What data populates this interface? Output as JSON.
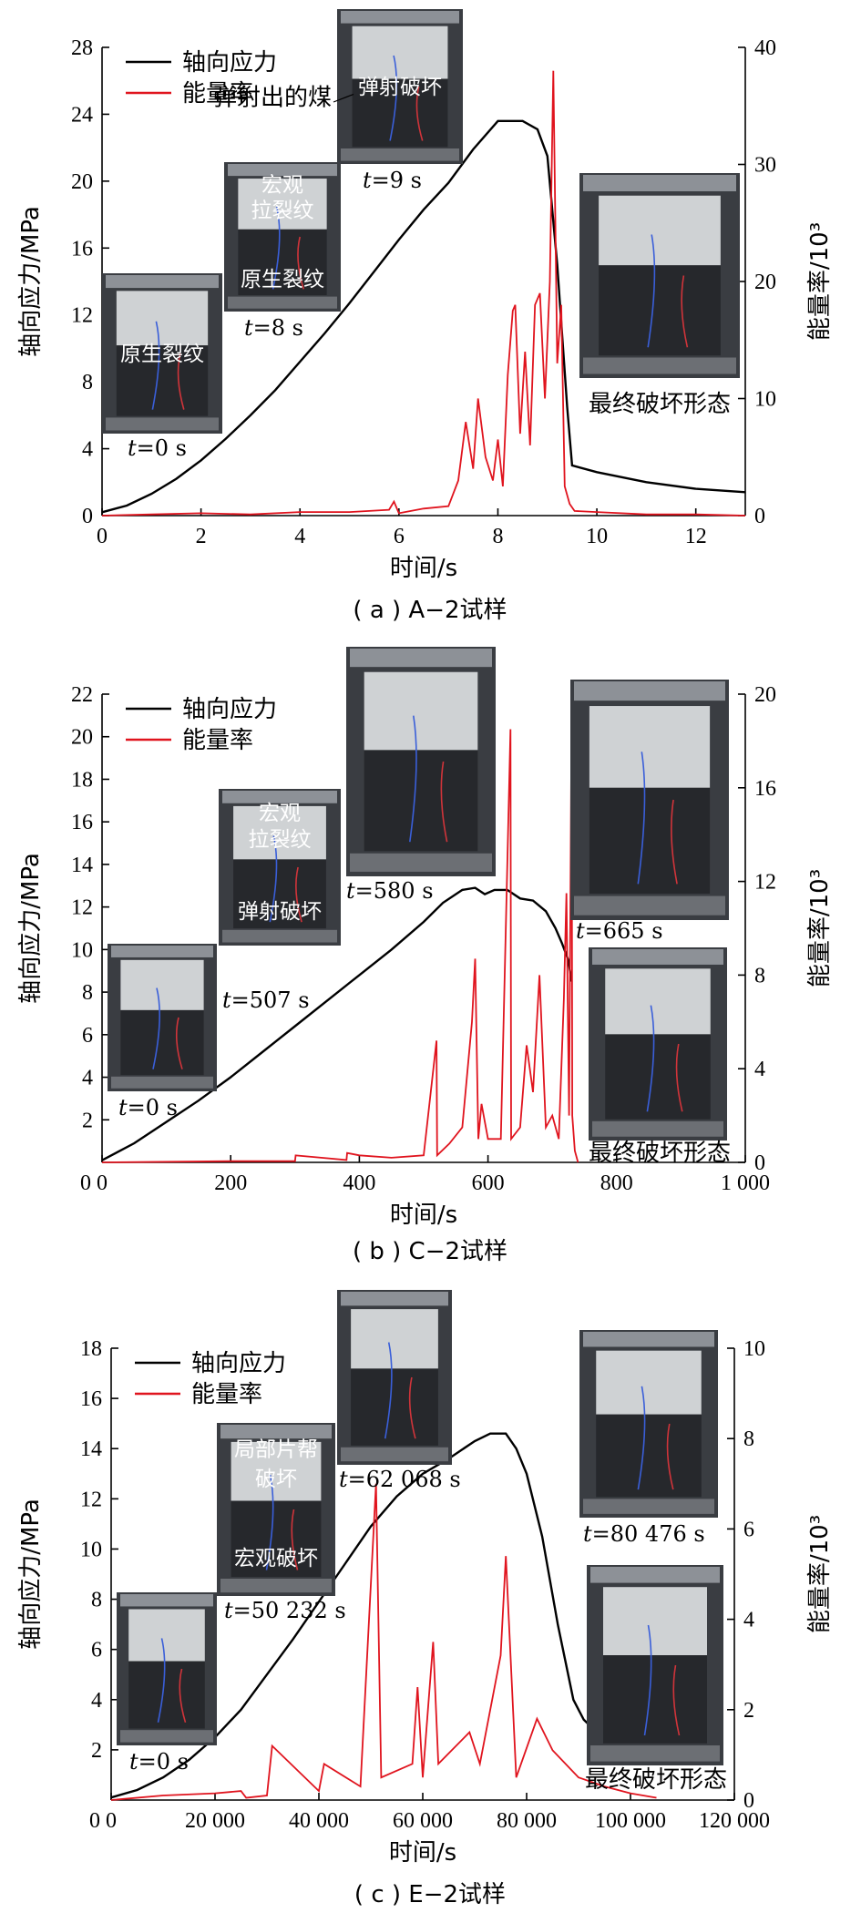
{
  "legend": {
    "stress": "轴向应力",
    "energy": "能量率"
  },
  "chart_data": [
    {
      "type": "line",
      "caption": "( a ) A−2试样",
      "xlabel": "时间/s",
      "ylabel": "轴向应力/MPa",
      "y2label": "能量率/10³",
      "xlim": [
        0,
        13
      ],
      "ylim": [
        0,
        28
      ],
      "y2lim": [
        0,
        40
      ],
      "xticks": [
        0,
        2,
        4,
        6,
        8,
        10,
        12
      ],
      "xtick_labels": [
        "0",
        "2",
        "4",
        "6",
        "8",
        "10",
        "12"
      ],
      "yticks": [
        0,
        4,
        8,
        12,
        16,
        20,
        24,
        28
      ],
      "y2ticks": [
        0,
        10,
        20,
        30,
        40
      ],
      "series": [
        {
          "name": "轴向应力",
          "axis": "left",
          "x": [
            0,
            0.5,
            1,
            1.5,
            2,
            2.5,
            3,
            3.5,
            4,
            4.5,
            5,
            5.5,
            6,
            6.5,
            7,
            7.5,
            8,
            8.5,
            8.8,
            9.0,
            9.2,
            9.4,
            9.5,
            10,
            11,
            12,
            13
          ],
          "y": [
            0.2,
            0.6,
            1.3,
            2.2,
            3.3,
            4.6,
            6.0,
            7.5,
            9.2,
            10.9,
            12.7,
            14.6,
            16.5,
            18.3,
            19.9,
            21.9,
            23.6,
            23.6,
            23.1,
            21.5,
            15.0,
            6.5,
            3.0,
            2.6,
            2.0,
            1.6,
            1.4
          ]
        },
        {
          "name": "能量率",
          "axis": "right",
          "x": [
            0,
            1,
            2,
            3,
            4,
            5,
            5.8,
            5.9,
            6.0,
            6.5,
            7.0,
            7.2,
            7.35,
            7.5,
            7.6,
            7.75,
            7.9,
            8.0,
            8.1,
            8.2,
            8.3,
            8.35,
            8.45,
            8.55,
            8.65,
            8.75,
            8.85,
            8.95,
            9.05,
            9.12,
            9.2,
            9.28,
            9.35,
            9.45,
            9.55,
            10,
            11,
            12,
            13
          ],
          "y": [
            0,
            0.1,
            0.2,
            0.1,
            0.3,
            0.3,
            0.5,
            1.2,
            0.2,
            0.6,
            0.8,
            3.0,
            8.0,
            4.0,
            10.0,
            5.0,
            3.0,
            6.5,
            2.5,
            12.0,
            17.5,
            18.0,
            7.0,
            14.0,
            6.0,
            18.0,
            19.0,
            10.0,
            20.0,
            38.0,
            13.0,
            18.0,
            2.5,
            1.0,
            0.4,
            0.3,
            0.1,
            0.1,
            0
          ]
        }
      ]
    },
    {
      "type": "line",
      "caption": "( b ) C−2试样",
      "xlabel": "时间/s",
      "ylabel": "轴向应力/MPa",
      "y2label": "能量率/10³",
      "xlim": [
        0,
        1000
      ],
      "ylim": [
        0,
        22
      ],
      "y2lim": [
        0,
        20
      ],
      "xticks": [
        0,
        200,
        400,
        600,
        800,
        1000
      ],
      "xtick_labels": [
        "0",
        "200",
        "400",
        "600",
        "800",
        "1 000"
      ],
      "yticks": [
        2,
        4,
        6,
        8,
        10,
        12,
        14,
        16,
        18,
        20,
        22
      ],
      "y2ticks": [
        0,
        4,
        8,
        12,
        16,
        20
      ],
      "series": [
        {
          "name": "轴向应力",
          "axis": "left",
          "x": [
            0,
            50,
            100,
            150,
            200,
            250,
            300,
            350,
            400,
            450,
            500,
            530,
            560,
            580,
            595,
            610,
            630,
            650,
            670,
            690,
            705,
            715,
            725,
            730
          ],
          "y": [
            0.1,
            0.9,
            1.9,
            2.9,
            4.0,
            5.2,
            6.4,
            7.6,
            8.8,
            10.0,
            11.3,
            12.2,
            12.8,
            12.9,
            12.6,
            12.8,
            12.8,
            12.4,
            12.3,
            11.8,
            11.0,
            10.3,
            9.5,
            8.5
          ]
        },
        {
          "name": "能量率",
          "axis": "right",
          "x": [
            0,
            200,
            300,
            301,
            380,
            381,
            400,
            450,
            500,
            520,
            521,
            540,
            560,
            575,
            580,
            585,
            590,
            600,
            620,
            635,
            636,
            650,
            660,
            670,
            680,
            690,
            700,
            710,
            718,
            722,
            726,
            730,
            731,
            735,
            740
          ],
          "y": [
            0,
            0.05,
            0.05,
            0.3,
            0.1,
            0.4,
            0.3,
            0.2,
            0.3,
            5.2,
            0.3,
            0.8,
            1.5,
            6.0,
            8.7,
            1.0,
            2.5,
            1.0,
            1.0,
            18.5,
            1.0,
            1.5,
            5.0,
            3.0,
            8.0,
            1.5,
            2.0,
            1.0,
            7.0,
            11.5,
            2.0,
            19.5,
            2.0,
            0.5,
            0
          ]
        }
      ]
    },
    {
      "type": "line",
      "caption": "( c ) E−2试样",
      "xlabel": "时间/s",
      "ylabel": "轴向应力/MPa",
      "y2label": "能量率/10³",
      "xlim": [
        0,
        120000
      ],
      "ylim": [
        0,
        18
      ],
      "y2lim": [
        0,
        10
      ],
      "xticks": [
        0,
        20000,
        40000,
        60000,
        80000,
        100000,
        120000
      ],
      "xtick_labels": [
        "0",
        "20 000",
        "40 000",
        "60 000",
        "80 000",
        "100 000",
        "120 000"
      ],
      "yticks": [
        2,
        4,
        6,
        8,
        10,
        12,
        14,
        16,
        18
      ],
      "y2ticks": [
        0,
        2,
        4,
        6,
        8,
        10
      ],
      "series": [
        {
          "name": "轴向应力",
          "axis": "left",
          "x": [
            0,
            5000,
            10000,
            15000,
            20000,
            25000,
            30000,
            35000,
            40000,
            45000,
            50000,
            55000,
            60000,
            65000,
            70000,
            73000,
            76000,
            78000,
            80000,
            83000,
            86000,
            89000,
            91000,
            92000,
            94000
          ],
          "y": [
            0.1,
            0.4,
            0.9,
            1.6,
            2.5,
            3.6,
            5.0,
            6.4,
            7.9,
            9.4,
            10.9,
            12.1,
            13.0,
            13.6,
            14.3,
            14.6,
            14.6,
            14.0,
            13.0,
            10.5,
            7.0,
            4.0,
            3.2,
            3.0,
            2.9
          ]
        },
        {
          "name": "能量率",
          "axis": "right",
          "x": [
            0,
            10000,
            20000,
            25000,
            26000,
            30000,
            31000,
            40000,
            41000,
            48000,
            51000,
            52000,
            58000,
            59000,
            60000,
            62000,
            63000,
            69000,
            71000,
            75000,
            76000,
            78000,
            82000,
            85000,
            90000,
            95000,
            100000,
            105000
          ],
          "y": [
            0,
            0.1,
            0.15,
            0.2,
            0.05,
            0.1,
            1.2,
            0.2,
            0.8,
            0.3,
            7.0,
            0.5,
            0.8,
            2.5,
            0.5,
            3.5,
            0.8,
            1.5,
            0.8,
            3.2,
            5.4,
            0.5,
            1.8,
            1.1,
            0.5,
            0.3,
            0.15,
            0.05
          ]
        }
      ]
    }
  ],
  "photos": [
    {
      "panel": 0,
      "time_label": "=0 s",
      "texts": [
        "原生裂纹"
      ]
    },
    {
      "panel": 0,
      "time_label": "=8 s",
      "texts": [
        "宏观",
        "拉裂纹",
        "原生裂纹"
      ]
    },
    {
      "panel": 0,
      "time_label": "=9 s",
      "texts": [
        "弹射破坏"
      ],
      "note": "弹射出的煤"
    },
    {
      "panel": 0,
      "time_label": "",
      "texts": [],
      "note": "最终破坏形态"
    },
    {
      "panel": 1,
      "time_label": "=0 s",
      "texts": []
    },
    {
      "panel": 1,
      "time_label": "=507 s",
      "texts": [
        "宏观",
        "拉裂纹",
        "弹射破坏"
      ]
    },
    {
      "panel": 1,
      "time_label": "=580 s",
      "texts": []
    },
    {
      "panel": 1,
      "time_label": "=665 s",
      "texts": []
    },
    {
      "panel": 1,
      "time_label": "",
      "texts": [],
      "note": "最终破坏形态"
    },
    {
      "panel": 2,
      "time_label": "=0 s",
      "texts": []
    },
    {
      "panel": 2,
      "time_label": "=50 232 s",
      "texts": [
        "局部片帮",
        "破坏",
        "宏观破坏"
      ]
    },
    {
      "panel": 2,
      "time_label": "=62 068 s",
      "texts": []
    },
    {
      "panel": 2,
      "time_label": "=80 476 s",
      "texts": []
    },
    {
      "panel": 2,
      "time_label": "",
      "texts": [],
      "note": "最终破坏形态"
    }
  ],
  "time_prefix": "t",
  "colors": {
    "stress": "#000000",
    "energy": "#e0141e",
    "photo_bg": "#3a3d42",
    "coal": "#26282c",
    "plate": "#8d9197"
  }
}
